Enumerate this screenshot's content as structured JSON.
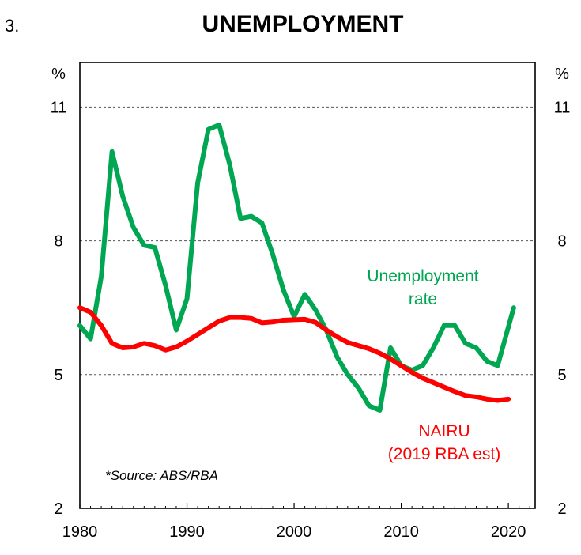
{
  "chart_data": {
    "type": "line",
    "figure_number": "3.",
    "title": "UNEMPLOYMENT",
    "left_unit": "%",
    "right_unit": "%",
    "xlim": [
      1980,
      2022.5
    ],
    "ylim": [
      2,
      12
    ],
    "y_ticks": [
      2,
      5,
      8,
      11
    ],
    "x_ticks": [
      1980,
      1990,
      2000,
      2010,
      2020
    ],
    "gridlines_at": [
      5,
      8,
      11
    ],
    "grid": "horizontal dashed",
    "series": [
      {
        "name": "Unemployment rate",
        "label_lines": [
          "Unemployment",
          "rate"
        ],
        "color": "#00a651",
        "x": [
          1980,
          1981,
          1982,
          1983,
          1984,
          1985,
          1986,
          1987,
          1988,
          1989,
          1990,
          1991,
          1992,
          1993,
          1994,
          1995,
          1996,
          1997,
          1998,
          1999,
          2000,
          2001,
          2002,
          2003,
          2004,
          2005,
          2006,
          2007,
          2008,
          2009,
          2010,
          2011,
          2012,
          2013,
          2014,
          2015,
          2016,
          2017,
          2018,
          2019,
          2020.5
        ],
        "values": [
          6.1,
          5.8,
          7.2,
          10.0,
          9.0,
          8.3,
          7.9,
          7.85,
          7.0,
          6.0,
          6.7,
          9.3,
          10.5,
          10.6,
          9.7,
          8.5,
          8.55,
          8.4,
          7.7,
          6.9,
          6.3,
          6.8,
          6.45,
          6.0,
          5.4,
          5.0,
          4.7,
          4.3,
          4.2,
          5.6,
          5.2,
          5.1,
          5.2,
          5.6,
          6.1,
          6.1,
          5.7,
          5.6,
          5.3,
          5.2,
          6.5
        ]
      },
      {
        "name": "NAIRU",
        "label_lines": [
          "NAIRU",
          "(2019 RBA est)"
        ],
        "color": "#ff0000",
        "x": [
          1980,
          1981,
          1982,
          1983,
          1984,
          1985,
          1986,
          1987,
          1988,
          1989,
          1990,
          1991,
          1992,
          1993,
          1994,
          1995,
          1996,
          1997,
          1998,
          1999,
          2000,
          2001,
          2002,
          2003,
          2004,
          2005,
          2006,
          2007,
          2008,
          2009,
          2010,
          2011,
          2012,
          2013,
          2014,
          2015,
          2016,
          2017,
          2018,
          2019,
          2020
        ],
        "values": [
          6.5,
          6.4,
          6.1,
          5.7,
          5.6,
          5.62,
          5.7,
          5.65,
          5.55,
          5.62,
          5.75,
          5.9,
          6.05,
          6.2,
          6.28,
          6.28,
          6.26,
          6.16,
          6.18,
          6.22,
          6.23,
          6.24,
          6.17,
          6.0,
          5.85,
          5.72,
          5.65,
          5.58,
          5.48,
          5.35,
          5.2,
          5.05,
          4.92,
          4.82,
          4.72,
          4.62,
          4.53,
          4.5,
          4.45,
          4.42,
          4.45
        ]
      }
    ],
    "source_note": "*Source: ABS/RBA"
  }
}
